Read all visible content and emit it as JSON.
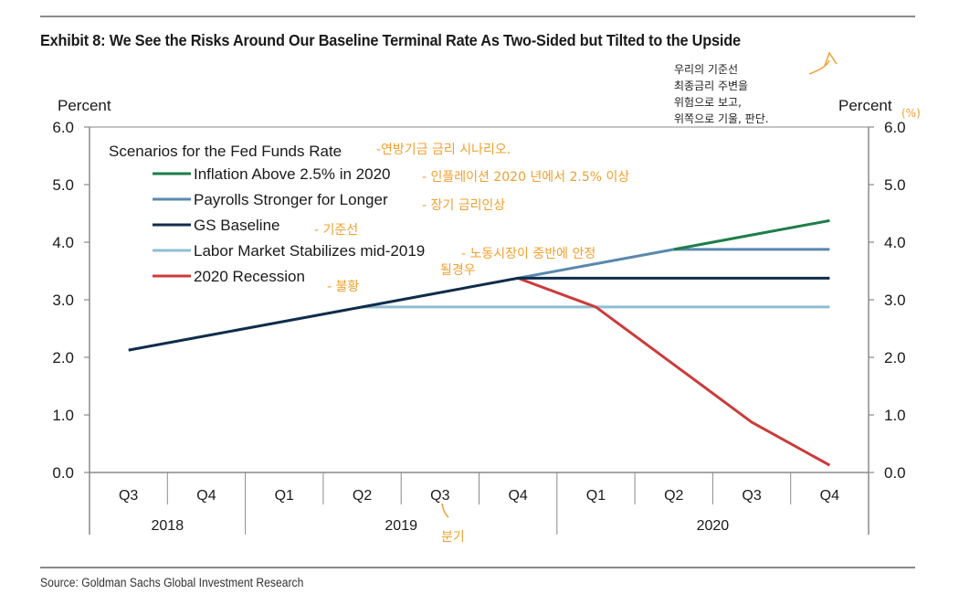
{
  "header": {
    "title": "Exhibit 8: We See the Risks Around Our Baseline Terminal Rate As Two-Sided but Tilted to the Upside"
  },
  "footer": {
    "source": "Source: Goldman Sachs Global Investment Research"
  },
  "chart_data": {
    "type": "line",
    "title": "Exhibit 8: We See the Risks Around Our Baseline Terminal Rate As Two-Sided but Tilted to the Upside",
    "legend_title": "Scenarios for the Fed Funds Rate",
    "legend_position": "top-left",
    "ylabel_left": "Percent",
    "ylabel_right": "Percent",
    "ylim": [
      0,
      6
    ],
    "yticks": [
      "0.0",
      "1.0",
      "2.0",
      "3.0",
      "4.0",
      "5.0",
      "6.0"
    ],
    "ytick_values": [
      0,
      1,
      2,
      3,
      4,
      5,
      6
    ],
    "grid": false,
    "categories": [
      "Q3",
      "Q4",
      "Q1",
      "Q2",
      "Q3",
      "Q4",
      "Q1",
      "Q2",
      "Q3",
      "Q4"
    ],
    "year_groups": [
      {
        "label": "2018",
        "span": 2
      },
      {
        "label": "2019",
        "span": 4
      },
      {
        "label": "2020",
        "span": 4
      }
    ],
    "series": [
      {
        "name": "Inflation Above 2.5% in 2020",
        "color": "#1e7d4a",
        "values": [
          null,
          null,
          null,
          null,
          null,
          null,
          null,
          3.875,
          4.125,
          4.375
        ]
      },
      {
        "name": "Payrolls Stronger for Longer",
        "color": "#5b88ad",
        "values": [
          null,
          null,
          null,
          null,
          null,
          3.375,
          3.625,
          3.875,
          3.875,
          3.875
        ]
      },
      {
        "name": "GS Baseline",
        "color": "#0f2d4a",
        "values": [
          2.125,
          2.375,
          2.625,
          2.875,
          3.125,
          3.375,
          3.375,
          3.375,
          3.375,
          3.375
        ]
      },
      {
        "name": "Labor Market Stabilizes mid-2019",
        "color": "#8fbcd6",
        "values": [
          null,
          null,
          null,
          2.875,
          2.875,
          2.875,
          2.875,
          2.875,
          2.875,
          2.875
        ]
      },
      {
        "name": "2020 Recession",
        "color": "#cc3b3b",
        "values": [
          null,
          null,
          null,
          null,
          null,
          3.375,
          2.875,
          1.875,
          0.875,
          0.125
        ]
      }
    ],
    "draw_order": [
      3,
      4,
      1,
      0,
      2
    ]
  },
  "annotations": {
    "legend_title_note": "-연방기금 금리 시나리오.",
    "inflation_note": "- 인플레이션 2020 년에서 2.5% 이상",
    "payrolls_note": "- 장기 금리인상",
    "baseline_note": "- 기준선",
    "labor_note_line1": "- 노동시장이 중반에 안정",
    "labor_note_line2": "될경우",
    "recession_note": "- 불황",
    "q3_note": "분기",
    "percent_note": "(%)",
    "korean_summary": [
      "우리의 기준선",
      "최종금리 주변을",
      "위험으로 보고,",
      "위쪽으로 기울, 판단."
    ]
  }
}
